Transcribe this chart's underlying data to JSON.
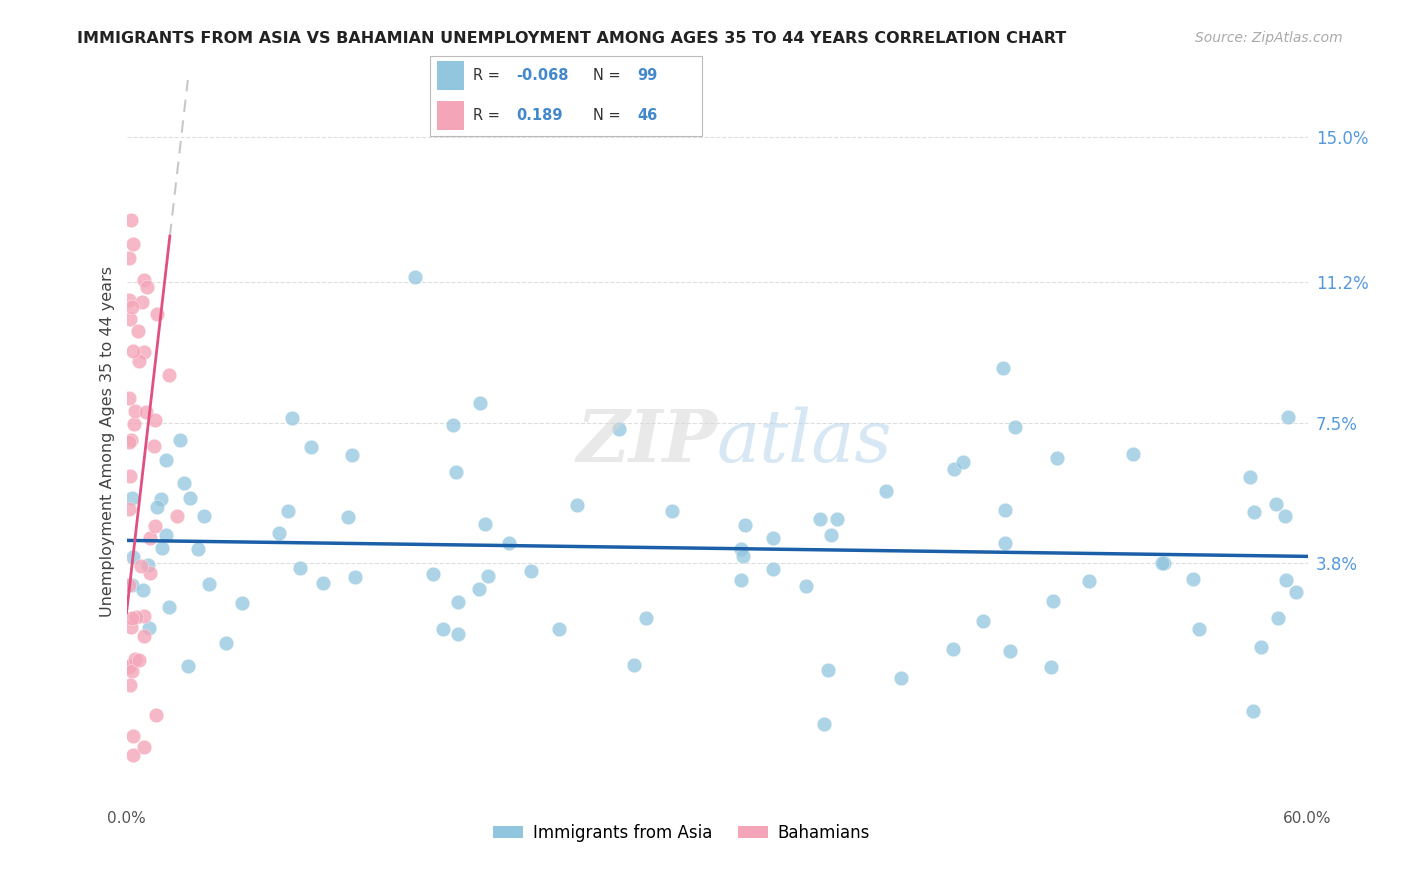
{
  "title": "IMMIGRANTS FROM ASIA VS BAHAMIAN UNEMPLOYMENT AMONG AGES 35 TO 44 YEARS CORRELATION CHART",
  "source": "Source: ZipAtlas.com",
  "ylabel": "Unemployment Among Ages 35 to 44 years",
  "xlim": [
    0.0,
    0.6
  ],
  "ylim": [
    -0.025,
    0.165
  ],
  "right_yticks": [
    0.038,
    0.075,
    0.112,
    0.15
  ],
  "right_yticklabels": [
    "3.8%",
    "7.5%",
    "11.2%",
    "15.0%"
  ],
  "blue_color": "#92c5de",
  "pink_color": "#f4a6b8",
  "trend_blue_color": "#1a5fa8",
  "trend_pink_color": "#e05080",
  "trend_gray_color": "#c8c8c8",
  "blue_N": 99,
  "pink_N": 46,
  "blue_R": "-0.068",
  "pink_R": "0.189"
}
